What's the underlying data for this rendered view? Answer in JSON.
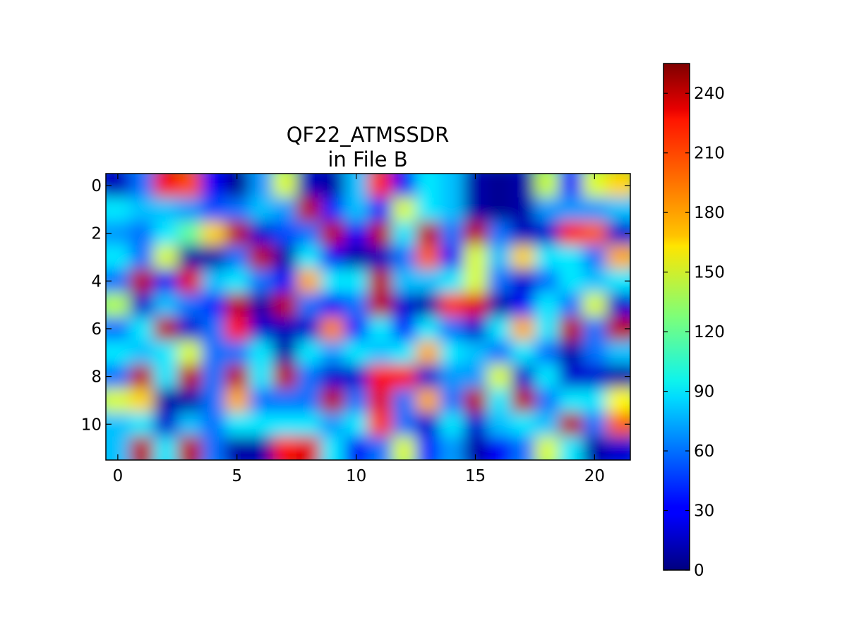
{
  "chart_data": {
    "type": "heatmap",
    "title": "QF22_ATMSSDR",
    "subtitle": "in File B",
    "xlabel": "",
    "ylabel": "",
    "x_ticks": [
      0,
      5,
      10,
      15,
      20
    ],
    "y_ticks": [
      0,
      2,
      4,
      6,
      8,
      10
    ],
    "x_range": [
      -0.5,
      21.5
    ],
    "y_range": [
      11.5,
      -0.5
    ],
    "grid": false,
    "colormap": "jet",
    "interpolation": "bilinear",
    "colorbar": {
      "location": "right",
      "range": [
        0,
        255
      ],
      "ticks": [
        0,
        30,
        60,
        90,
        120,
        150,
        180,
        210,
        240
      ]
    },
    "rows": 12,
    "cols": 22,
    "values": [
      [
        15,
        60,
        225,
        205,
        30,
        5,
        70,
        150,
        15,
        10,
        80,
        215,
        30,
        90,
        80,
        10,
        5,
        10,
        145,
        40,
        150,
        170
      ],
      [
        90,
        80,
        80,
        70,
        50,
        60,
        80,
        70,
        240,
        40,
        80,
        40,
        150,
        90,
        80,
        10,
        5,
        10,
        70,
        70,
        70,
        80
      ],
      [
        70,
        60,
        90,
        120,
        170,
        240,
        20,
        50,
        60,
        240,
        30,
        240,
        90,
        240,
        60,
        240,
        60,
        15,
        20,
        220,
        200,
        20
      ],
      [
        90,
        60,
        150,
        10,
        10,
        60,
        240,
        10,
        90,
        30,
        10,
        15,
        60,
        200,
        30,
        150,
        80,
        170,
        90,
        90,
        60,
        180
      ],
      [
        60,
        240,
        30,
        230,
        80,
        90,
        60,
        30,
        180,
        90,
        90,
        240,
        80,
        80,
        90,
        150,
        60,
        20,
        60,
        90,
        80,
        90
      ],
      [
        140,
        20,
        80,
        60,
        40,
        240,
        10,
        240,
        60,
        30,
        60,
        240,
        20,
        10,
        210,
        230,
        10,
        30,
        90,
        60,
        150,
        20
      ],
      [
        60,
        90,
        240,
        20,
        60,
        220,
        20,
        15,
        20,
        190,
        40,
        90,
        40,
        90,
        60,
        20,
        90,
        180,
        90,
        240,
        60,
        240
      ],
      [
        90,
        80,
        90,
        150,
        60,
        60,
        90,
        10,
        90,
        70,
        90,
        80,
        90,
        180,
        90,
        80,
        60,
        90,
        60,
        10,
        60,
        80
      ],
      [
        60,
        240,
        90,
        240,
        60,
        240,
        90,
        240,
        60,
        20,
        20,
        220,
        220,
        20,
        70,
        70,
        150,
        20,
        90,
        20,
        20,
        10
      ],
      [
        150,
        170,
        10,
        10,
        60,
        180,
        60,
        60,
        60,
        240,
        60,
        230,
        60,
        180,
        60,
        240,
        90,
        240,
        60,
        90,
        90,
        160
      ],
      [
        80,
        90,
        20,
        80,
        60,
        90,
        90,
        90,
        90,
        70,
        90,
        210,
        60,
        20,
        90,
        20,
        80,
        90,
        80,
        240,
        60,
        200
      ],
      [
        80,
        240,
        90,
        240,
        60,
        10,
        10,
        220,
        230,
        90,
        30,
        60,
        150,
        40,
        70,
        10,
        30,
        60,
        150,
        90,
        10,
        20
      ]
    ]
  }
}
